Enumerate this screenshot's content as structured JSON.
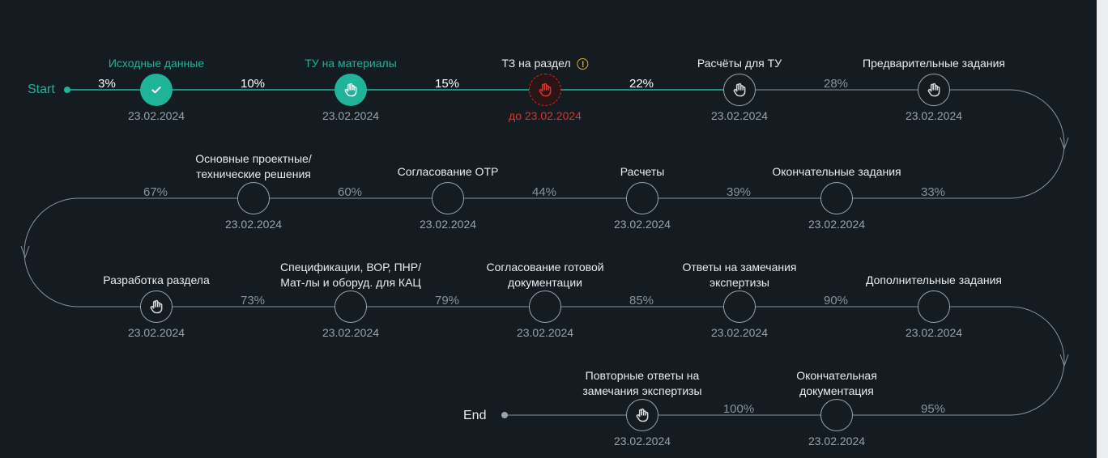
{
  "terminals": {
    "start": "Start",
    "end": "End"
  },
  "colors": {
    "done": "#1fb39a",
    "overdue": "#e0332b",
    "warning": "#e0b012",
    "pending": "#9aa3ab",
    "background": "#141b21"
  },
  "steps": [
    {
      "label": "Исходные данные",
      "date": "23.02.2024",
      "status": "done",
      "icon": "check-icon"
    },
    {
      "label": "ТУ на материалы",
      "date": "23.02.2024",
      "status": "done",
      "icon": "hand-icon"
    },
    {
      "label": "ТЗ на раздел",
      "date": "до 23.02.2024",
      "status": "overdue",
      "icon": "hand-icon",
      "warning_icon": "warning-icon",
      "warning_glyph": "!"
    },
    {
      "label": "Расчёты для ТУ",
      "date": "23.02.2024",
      "status": "pending",
      "icon": "hand-icon"
    },
    {
      "label": "Предварительные задания",
      "date": "23.02.2024",
      "status": "pending",
      "icon": "hand-icon"
    },
    {
      "label": "Окончательные задания",
      "date": "23.02.2024",
      "status": "pending",
      "icon": "none"
    },
    {
      "label": "Расчеты",
      "date": "23.02.2024",
      "status": "pending",
      "icon": "none"
    },
    {
      "label": "Согласование ОТР",
      "date": "23.02.2024",
      "status": "pending",
      "icon": "none"
    },
    {
      "label": "Основные проектные/\nтехнические решения",
      "date": "23.02.2024",
      "status": "pending",
      "icon": "none"
    },
    {
      "label": "Разработка раздела",
      "date": "23.02.2024",
      "status": "pending",
      "icon": "hand-icon"
    },
    {
      "label": "Спецификации, ВОР, ПНР/\nМат-лы и оборуд. для КАЦ",
      "date": "23.02.2024",
      "status": "pending",
      "icon": "none"
    },
    {
      "label": "Согласование готовой\nдокументации",
      "date": "23.02.2024",
      "status": "pending",
      "icon": "none"
    },
    {
      "label": "Ответы на замечания\nэкспертизы",
      "date": "23.02.2024",
      "status": "pending",
      "icon": "none"
    },
    {
      "label": "Дополнительные задания",
      "date": "23.02.2024",
      "status": "pending",
      "icon": "none"
    },
    {
      "label": "Окончательная\nдокументация",
      "date": "23.02.2024",
      "status": "pending",
      "icon": "none"
    },
    {
      "label": "Повторные ответы на\nзамечания экспертизы",
      "date": "23.02.2024",
      "status": "pending",
      "icon": "hand-icon"
    }
  ],
  "segments": [
    {
      "value": "3%",
      "state": "active"
    },
    {
      "value": "10%",
      "state": "active"
    },
    {
      "value": "15%",
      "state": "active"
    },
    {
      "value": "22%",
      "state": "active"
    },
    {
      "value": "28%",
      "state": "muted"
    },
    {
      "value": "33%",
      "state": "muted"
    },
    {
      "value": "39%",
      "state": "muted"
    },
    {
      "value": "44%",
      "state": "muted"
    },
    {
      "value": "60%",
      "state": "muted"
    },
    {
      "value": "67%",
      "state": "muted"
    },
    {
      "value": "73%",
      "state": "muted"
    },
    {
      "value": "79%",
      "state": "muted"
    },
    {
      "value": "85%",
      "state": "muted"
    },
    {
      "value": "90%",
      "state": "muted"
    },
    {
      "value": "95%",
      "state": "muted"
    },
    {
      "value": "100%",
      "state": "muted"
    }
  ]
}
